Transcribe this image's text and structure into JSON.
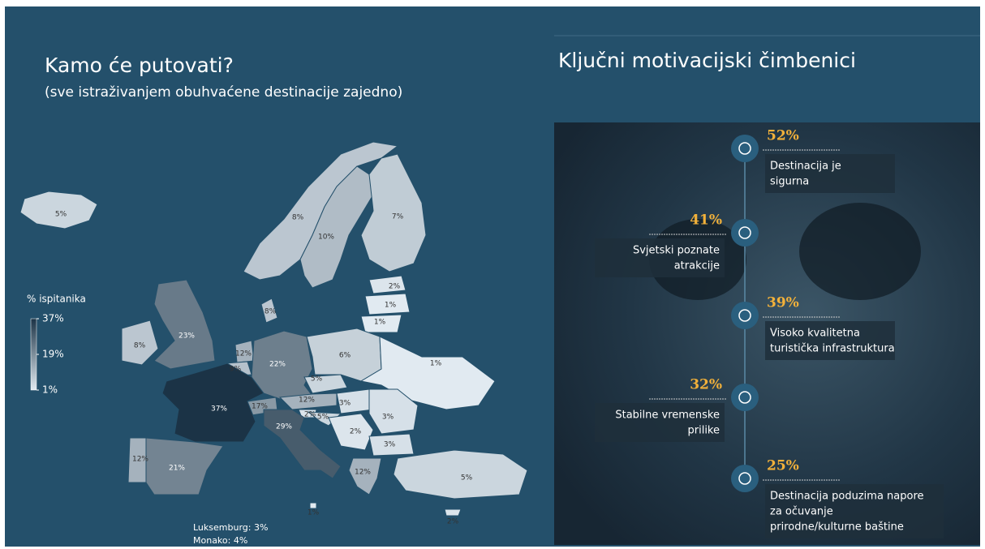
{
  "left": {
    "title": "Kamo će putovati?",
    "subtitle": "(sve istraživanjem obuhvaćene destinacije zajedno)",
    "legend": {
      "title": "%  ispitanika",
      "colors": [
        "#e1eaf1",
        "#1b3346"
      ],
      "ticks": [
        {
          "value": 37,
          "label": "37%"
        },
        {
          "value": 19,
          "label": "19%"
        },
        {
          "value": 1,
          "label": "1%"
        }
      ]
    },
    "countries": [
      {
        "value": 5,
        "label": "5%"
      },
      {
        "value": 8,
        "label": "8%"
      },
      {
        "value": 10,
        "label": "10%"
      },
      {
        "value": 7,
        "label": "7%"
      },
      {
        "value": 2,
        "label": "2%"
      },
      {
        "value": 1,
        "label": "1%"
      },
      {
        "value": 1,
        "label": "1%"
      },
      {
        "value": 8,
        "label": "8%"
      },
      {
        "value": 23,
        "label": "23%"
      },
      {
        "value": 8,
        "label": "8%"
      },
      {
        "value": 12,
        "label": "12%"
      },
      {
        "value": 9,
        "label": "9%"
      },
      {
        "value": 22,
        "label": "22%"
      },
      {
        "value": 6,
        "label": "6%"
      },
      {
        "value": 5,
        "label": "5%"
      },
      {
        "value": 1,
        "label": "1%"
      },
      {
        "value": 12,
        "label": "12%"
      },
      {
        "value": 17,
        "label": "17%"
      },
      {
        "value": 37,
        "label": "37%"
      },
      {
        "value": 2,
        "label": "2%"
      },
      {
        "value": 5,
        "label": "5%"
      },
      {
        "value": 3,
        "label": "3%"
      },
      {
        "value": 3,
        "label": "3%"
      },
      {
        "value": 2,
        "label": "2%"
      },
      {
        "value": 3,
        "label": "3%"
      },
      {
        "value": 29,
        "label": "29%"
      },
      {
        "value": 12,
        "label": "12%"
      },
      {
        "value": 21,
        "label": "21%"
      },
      {
        "value": 12,
        "label": "12%"
      },
      {
        "value": 5,
        "label": "5%"
      },
      {
        "value": 1,
        "label": "1%"
      },
      {
        "value": 2,
        "label": "2%"
      }
    ],
    "notes": [
      "Luksemburg: 3%",
      "Monako: 4%"
    ]
  },
  "right": {
    "title": "Ključni motivacijski čimbenici",
    "items": [
      {
        "percent": "52%",
        "text": [
          "Destinacija je",
          "sigurna"
        ]
      },
      {
        "percent": "41%",
        "text": [
          "Svjetski poznate",
          "atrakcije"
        ]
      },
      {
        "percent": "39%",
        "text": [
          "Visoko kvalitetna",
          "turistička infrastruktura"
        ]
      },
      {
        "percent": "32%",
        "text": [
          "Stabilne vremenske",
          "prilike"
        ]
      },
      {
        "percent": "25%",
        "text": [
          "Destinacija poduzima napore",
          "za očuvanje",
          "prirodne/kulturne baštine"
        ]
      }
    ]
  }
}
